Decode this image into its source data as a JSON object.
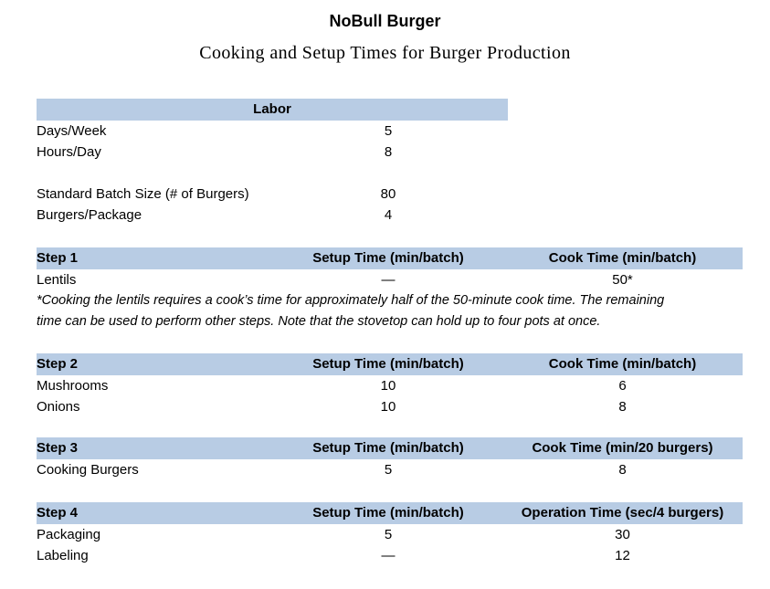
{
  "page": {
    "title": "NoBull Burger",
    "subtitle": "Cooking and Setup Times for Burger Production"
  },
  "colors": {
    "table_header_fill": "#b8cce4",
    "text": "#000000"
  },
  "labor": {
    "header": "Labor",
    "rows": [
      {
        "label": "Days/Week",
        "value": "5"
      },
      {
        "label": "Hours/Day",
        "value": "8"
      },
      {
        "label": "Standard Batch Size (# of Burgers)",
        "value": "80"
      },
      {
        "label": "Burgers/Package",
        "value": "4"
      }
    ]
  },
  "steps": [
    {
      "name": "Step 1",
      "setup_header": "Setup Time (min/batch)",
      "time_header": "Cook Time (min/batch)",
      "rows": [
        {
          "label": "Lentils",
          "setup": "—",
          "time": "50*"
        }
      ],
      "footnote_lines": [
        "*Cooking the lentils requires a cook’s time for approximately half of the 50-minute cook time. The remaining",
        "time can be used to perform other steps. Note that the stovetop can hold up to four pots at once."
      ]
    },
    {
      "name": "Step 2",
      "setup_header": "Setup Time (min/batch)",
      "time_header": "Cook Time (min/batch)",
      "rows": [
        {
          "label": "Mushrooms",
          "setup": "10",
          "time": "6"
        },
        {
          "label": "Onions",
          "setup": "10",
          "time": "8"
        }
      ]
    },
    {
      "name": "Step 3",
      "setup_header": "Setup Time (min/batch)",
      "time_header": "Cook Time (min/20 burgers)",
      "rows": [
        {
          "label": "Cooking Burgers",
          "setup": "5",
          "time": "8"
        }
      ]
    },
    {
      "name": "Step 4",
      "setup_header": "Setup Time (min/batch)",
      "time_header": "Operation Time (sec/4 burgers)",
      "rows": [
        {
          "label": "Packaging",
          "setup": "5",
          "time": "30"
        },
        {
          "label": "Labeling",
          "setup": "—",
          "time": "12"
        }
      ]
    }
  ]
}
